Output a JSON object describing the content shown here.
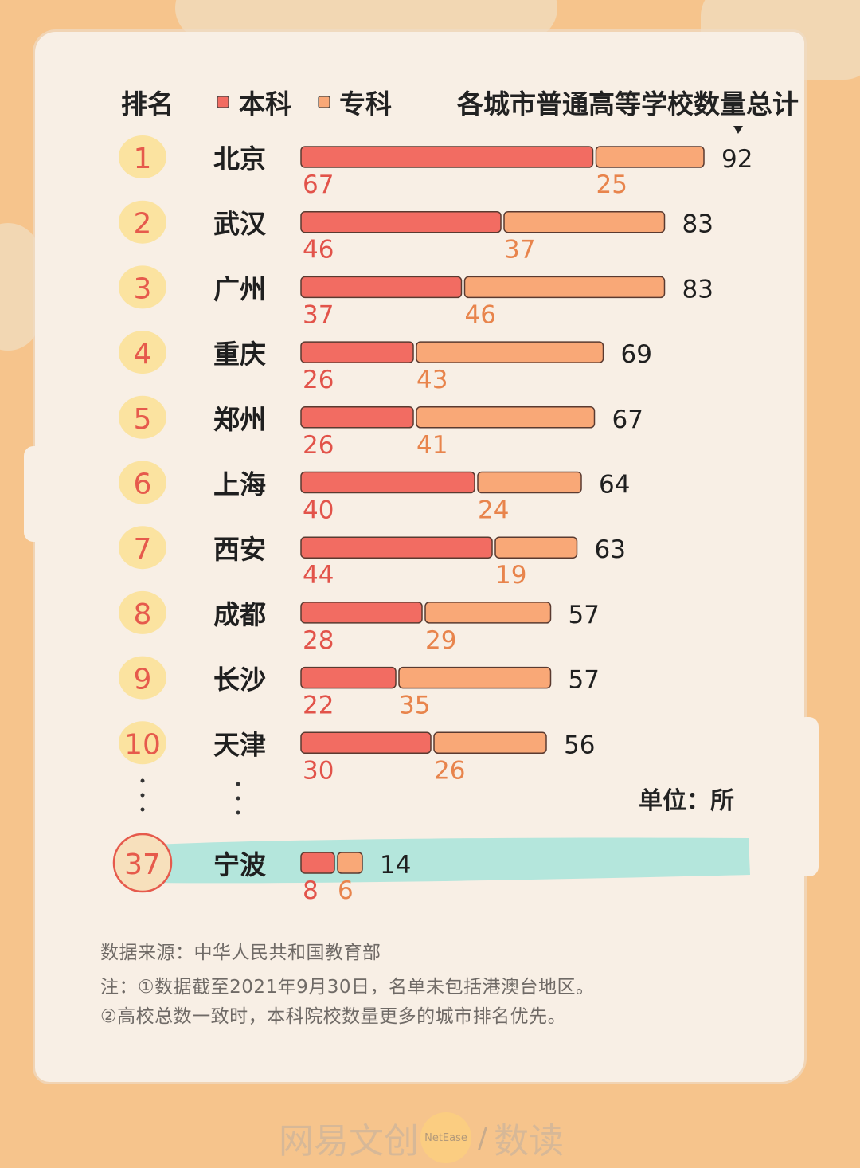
{
  "chart_data": {
    "type": "bar",
    "title": "各城市普通高等学校数量总计",
    "rank_header": "排名",
    "legend": [
      {
        "name": "本科",
        "color": "#f26c62"
      },
      {
        "name": "专科",
        "color": "#f9a877"
      }
    ],
    "unit": "单位：所",
    "rows": [
      {
        "rank": "1",
        "city": "北京",
        "undergrad": 67,
        "junior": 25,
        "total": 92
      },
      {
        "rank": "2",
        "city": "武汉",
        "undergrad": 46,
        "junior": 37,
        "total": 83
      },
      {
        "rank": "3",
        "city": "广州",
        "undergrad": 37,
        "junior": 46,
        "total": 83
      },
      {
        "rank": "4",
        "city": "重庆",
        "undergrad": 26,
        "junior": 43,
        "total": 69
      },
      {
        "rank": "5",
        "city": "郑州",
        "undergrad": 26,
        "junior": 41,
        "total": 67
      },
      {
        "rank": "6",
        "city": "上海",
        "undergrad": 40,
        "junior": 24,
        "total": 64
      },
      {
        "rank": "7",
        "city": "西安",
        "undergrad": 44,
        "junior": 19,
        "total": 63
      },
      {
        "rank": "8",
        "city": "成都",
        "undergrad": 28,
        "junior": 29,
        "total": 57
      },
      {
        "rank": "9",
        "city": "长沙",
        "undergrad": 22,
        "junior": 35,
        "total": 57
      },
      {
        "rank": "10",
        "city": "天津",
        "undergrad": 30,
        "junior": 26,
        "total": 56
      }
    ],
    "highlight": {
      "rank": "37",
      "city": "宁波",
      "undergrad": 8,
      "junior": 6,
      "total": 14
    }
  },
  "colors": {
    "undergrad": "#f26c62",
    "undergrad_text": "#e2534a",
    "junior": "#f9a877",
    "junior_text": "#e8844c",
    "rank_circle": "#fbe3a0",
    "rank_text": "#e65a4c",
    "highlight_band": "#a8e4da"
  },
  "footer": {
    "source": "数据来源：中华人民共和国教育部",
    "note1": "注：①数据截至2021年9月30日，名单未包括港澳台地区。",
    "note2": "②高校总数一致时，本科院校数量更多的城市排名优先。"
  },
  "watermark": {
    "left": "网易文创",
    "circle": "NetEase",
    "slash": "/",
    "right": "数读"
  }
}
